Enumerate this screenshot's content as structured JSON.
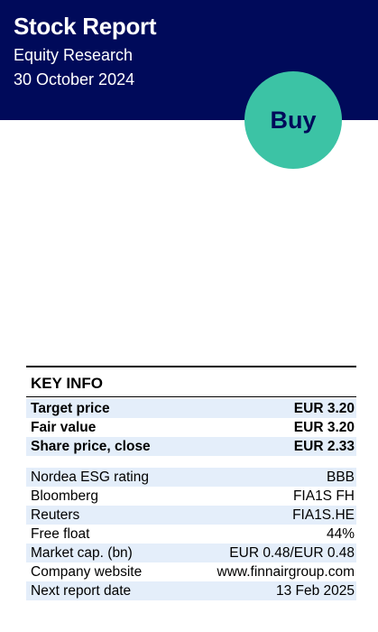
{
  "header": {
    "title": "Stock Report",
    "subtitle": "Equity Research",
    "date": "30 October 2024",
    "rating": "Buy",
    "colors": {
      "header_bg": "#000a5a",
      "badge_bg": "#3cc3a5",
      "row_shade": "#e4eefa"
    }
  },
  "key_info": {
    "heading": "KEY INFO",
    "prices": [
      {
        "label": "Target price",
        "value": "EUR 3.20"
      },
      {
        "label": "Fair value",
        "value": "EUR 3.20"
      },
      {
        "label": "Share price, close",
        "value": "EUR 2.33"
      }
    ],
    "details": [
      {
        "label": "Nordea ESG rating",
        "value": "BBB"
      },
      {
        "label": "Bloomberg",
        "value": "FIA1S FH"
      },
      {
        "label": "Reuters",
        "value": "FIA1S.HE"
      },
      {
        "label": "Free float",
        "value": "44%"
      },
      {
        "label": "Market cap. (bn)",
        "value": "EUR 0.48/EUR 0.48"
      },
      {
        "label": "Company website",
        "value": "www.finnairgroup.com"
      },
      {
        "label": "Next report date",
        "value": "13 Feb 2025"
      }
    ]
  }
}
